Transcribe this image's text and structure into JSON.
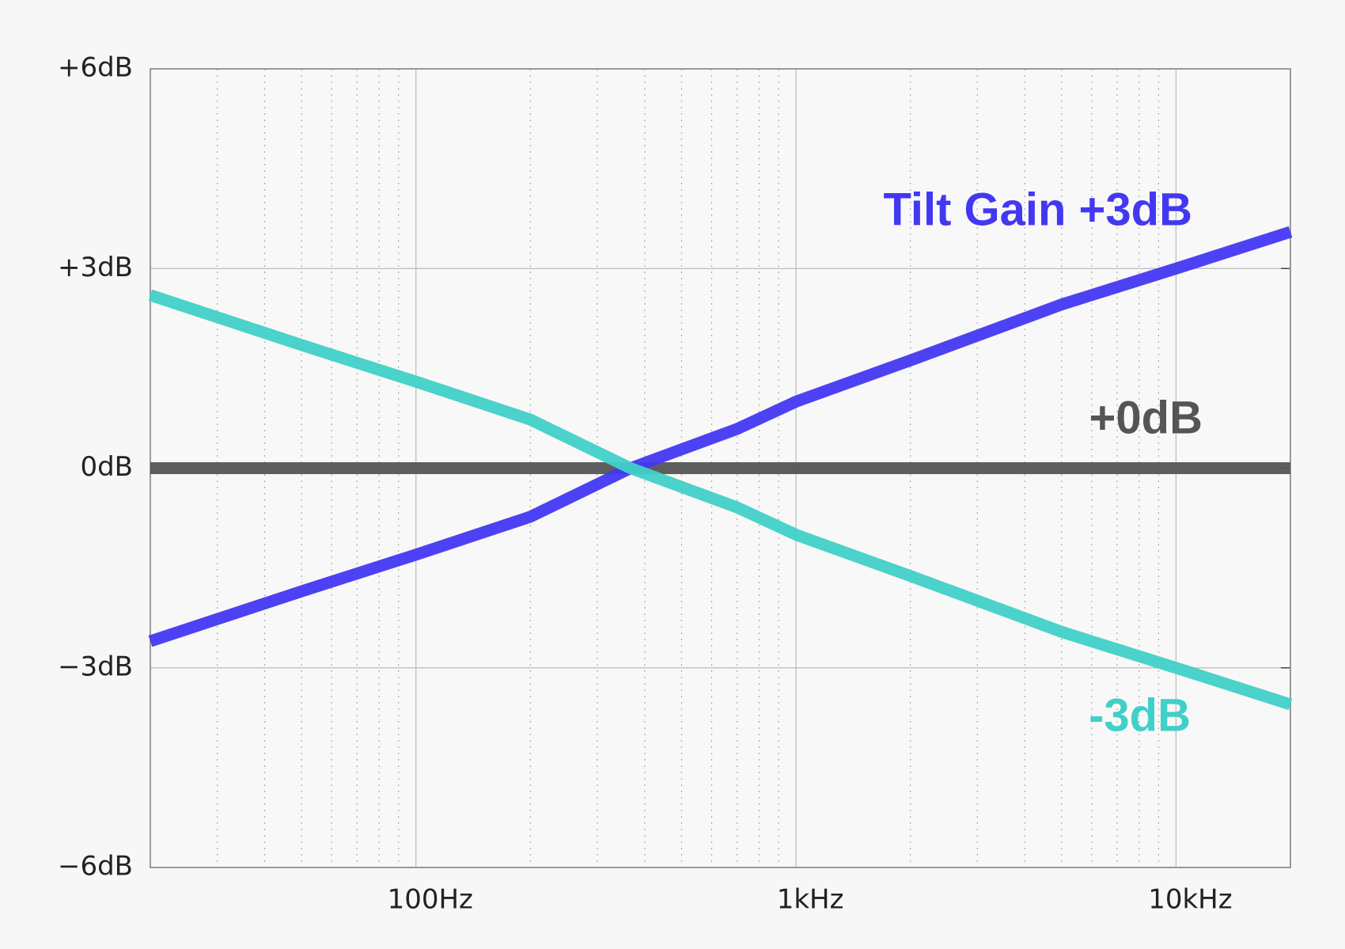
{
  "chart_data": {
    "type": "line",
    "x": [
      20,
      50,
      100,
      200,
      367,
      700,
      1000,
      2000,
      5000,
      10000,
      20000
    ],
    "series": [
      {
        "name": "Tilt Gain +3dB",
        "color": "#4338f2",
        "values": [
          -2.6,
          -1.85,
          -1.3,
          -0.73,
          0,
          0.59,
          1.0,
          1.62,
          2.46,
          3.0,
          3.55
        ]
      },
      {
        "name": "+0dB",
        "color": "#555555",
        "values": [
          0,
          0,
          0,
          0,
          0,
          0,
          0,
          0,
          0,
          0,
          0
        ]
      },
      {
        "name": "-3dB",
        "color": "#40d0c8",
        "values": [
          2.6,
          1.85,
          1.3,
          0.73,
          0,
          -0.59,
          -1.0,
          -1.62,
          -2.46,
          -3.0,
          -3.55
        ]
      }
    ],
    "xlim": [
      20,
      20000
    ],
    "xscale": "log",
    "xticks": [
      {
        "value": 100,
        "label": "100Hz"
      },
      {
        "value": 1000,
        "label": "1kHz"
      },
      {
        "value": 10000,
        "label": "10kHz"
      }
    ],
    "xminorticks": [
      30,
      40,
      50,
      60,
      70,
      80,
      90,
      200,
      300,
      400,
      500,
      600,
      700,
      800,
      900,
      2000,
      3000,
      4000,
      5000,
      6000,
      7000,
      8000,
      9000
    ],
    "ylim": [
      -6,
      6
    ],
    "yticks": [
      {
        "value": -6,
        "label": "−6dB"
      },
      {
        "value": -3,
        "label": "−3dB"
      },
      {
        "value": 0,
        "label": "0dB"
      },
      {
        "value": 3,
        "label": "+3dB"
      },
      {
        "value": 6,
        "label": "+6dB"
      }
    ],
    "grid": true
  }
}
